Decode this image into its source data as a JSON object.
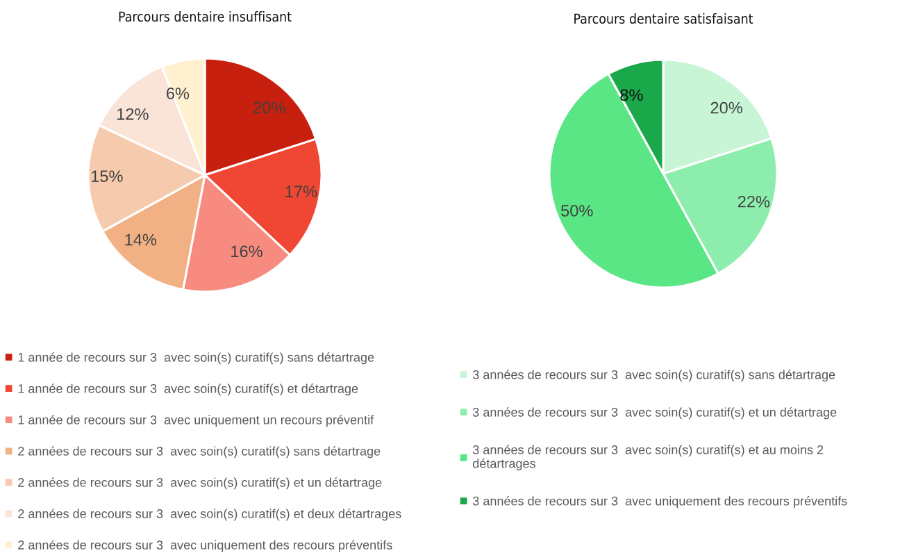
{
  "chart_data": [
    {
      "type": "pie",
      "title": "Parcours dentaire insuffisant",
      "categories": [
        "1 année de recours sur 3  avec soin(s) curatif(s) sans détartrage",
        "1 année de recours sur 3  avec soin(s) curatif(s) et détartrage",
        "1 année de recours sur 3  avec uniquement un recours préventif",
        "2 années de recours sur 3  avec soin(s) curatif(s) sans détartrage",
        "2 années de recours sur 3  avec soin(s) curatif(s) et un détartrage",
        "2 années de recours sur 3  avec soin(s) curatif(s) et deux détartrages",
        "2 années de recours sur 3  avec uniquement des recours préventifs"
      ],
      "values": [
        20,
        17,
        16,
        14,
        15,
        12,
        6
      ],
      "colors": [
        "#c8200e",
        "#f04634",
        "#f78b7f",
        "#f2b185",
        "#f6cbad",
        "#fae3d7",
        "#fff0d0"
      ],
      "value_labels": [
        "20%",
        "17%",
        "16%",
        "14%",
        "15%",
        "12%",
        "6%"
      ],
      "legend": "bottom"
    },
    {
      "type": "pie",
      "title": "Parcours dentaire satisfaisant",
      "categories": [
        "3 années de recours sur 3  avec soin(s) curatif(s) sans détartrage",
        "3 années de recours sur 3  avec soin(s) curatif(s) et un détartrage",
        "3 années de recours sur 3  avec soin(s) curatif(s) et au moins 2\ndétartrages",
        "3 années de recours sur 3  avec uniquement des recours préventifs"
      ],
      "values": [
        20,
        22,
        50,
        8
      ],
      "colors": [
        "#c8f5d6",
        "#8dedad",
        "#5ae685",
        "#1ba84a"
      ],
      "value_labels": [
        "20%",
        "22%",
        "50%",
        "8%"
      ],
      "legend": "bottom"
    }
  ]
}
